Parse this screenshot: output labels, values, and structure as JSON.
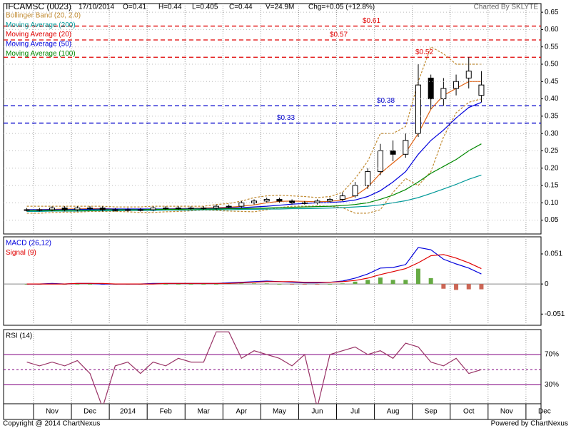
{
  "header": {
    "symbol": "IFCAMSC (0023)",
    "date": "17/10/2014",
    "open": "O=0.41",
    "high": "H=0.44",
    "low": "L=0.405",
    "close": "C=0.44",
    "volume": "V=24.9M",
    "change": "Chg=+0.05 (+12.8%)",
    "credit": "Charted By SKLYTE"
  },
  "footer": {
    "copyright": "Copyright @ 2014 ChartNexus",
    "powered": "Powered by ChartNexus"
  },
  "chart_data": [
    {
      "type": "candlestick",
      "categories": [
        null,
        null,
        "Nov",
        null,
        null,
        "Dec",
        null,
        null,
        "2014",
        null,
        null,
        "Feb",
        null,
        null,
        "Mar",
        null,
        null,
        "Apr",
        null,
        null,
        "May",
        null,
        null,
        "Jun",
        null,
        null,
        "Jul",
        null,
        null,
        "Aug",
        null,
        null,
        "Sep",
        null,
        null,
        "Oct",
        null,
        null,
        "Nov",
        null,
        null,
        "Dec"
      ],
      "open": [
        0.08,
        0.08,
        0.08,
        0.085,
        0.08,
        0.085,
        0.085,
        0.08,
        0.08,
        0.08,
        0.08,
        0.085,
        0.085,
        0.085,
        0.085,
        0.085,
        0.09,
        0.09,
        0.1,
        0.105,
        0.11,
        0.105,
        0.1,
        0.1,
        0.105,
        0.11,
        0.12,
        0.15,
        0.19,
        0.25,
        0.24,
        0.3,
        0.46,
        0.4,
        0.43,
        0.46,
        0.41,
        null,
        null,
        null,
        null,
        null
      ],
      "high": [
        0.085,
        0.085,
        0.09,
        0.09,
        0.09,
        0.09,
        0.09,
        0.085,
        0.085,
        0.085,
        0.09,
        0.09,
        0.09,
        0.09,
        0.09,
        0.095,
        0.095,
        0.105,
        0.11,
        0.115,
        0.115,
        0.11,
        0.105,
        0.11,
        0.115,
        0.13,
        0.16,
        0.2,
        0.27,
        0.28,
        0.3,
        0.5,
        0.47,
        0.46,
        0.47,
        0.52,
        0.48,
        null,
        null,
        null,
        null,
        null
      ],
      "low": [
        0.075,
        0.075,
        0.075,
        0.075,
        0.075,
        0.08,
        0.075,
        0.075,
        0.075,
        0.075,
        0.075,
        0.08,
        0.08,
        0.08,
        0.08,
        0.08,
        0.085,
        0.085,
        0.095,
        0.1,
        0.1,
        0.095,
        0.095,
        0.095,
        0.1,
        0.105,
        0.115,
        0.14,
        0.18,
        0.22,
        0.23,
        0.29,
        0.37,
        0.38,
        0.41,
        0.43,
        0.39,
        null,
        null,
        null,
        null,
        null
      ],
      "close": [
        0.08,
        0.08,
        0.085,
        0.08,
        0.085,
        0.085,
        0.08,
        0.08,
        0.08,
        0.08,
        0.085,
        0.085,
        0.085,
        0.085,
        0.085,
        0.09,
        0.09,
        0.1,
        0.105,
        0.11,
        0.105,
        0.1,
        0.1,
        0.105,
        0.11,
        0.12,
        0.15,
        0.19,
        0.25,
        0.24,
        0.28,
        0.44,
        0.4,
        0.43,
        0.45,
        0.48,
        0.44,
        null,
        null,
        null,
        null,
        null
      ],
      "candle_color": "#000000",
      "series": [
        {
          "name": "Bollinger Band (20, 2.0)",
          "color": "#c08a30",
          "dashed": true,
          "values": [
            0.09,
            0.09,
            0.09,
            0.09,
            0.09,
            0.09,
            0.09,
            0.088,
            0.088,
            0.088,
            0.09,
            0.09,
            0.09,
            0.09,
            0.09,
            0.095,
            0.098,
            0.105,
            0.115,
            0.12,
            0.122,
            0.12,
            0.118,
            0.115,
            0.118,
            0.13,
            0.17,
            0.22,
            0.3,
            0.3,
            0.32,
            0.45,
            0.55,
            0.53,
            0.5,
            0.5,
            0.5,
            null,
            null,
            null,
            null,
            null
          ],
          "lower": [
            0.07,
            0.07,
            0.072,
            0.073,
            0.073,
            0.075,
            0.075,
            0.075,
            0.074,
            0.072,
            0.072,
            0.074,
            0.075,
            0.077,
            0.079,
            0.078,
            0.076,
            0.075,
            0.074,
            0.08,
            0.086,
            0.09,
            0.09,
            0.091,
            0.09,
            0.086,
            0.07,
            0.07,
            0.08,
            0.13,
            0.17,
            0.15,
            0.19,
            0.29,
            0.36,
            0.39,
            0.4,
            null,
            null,
            null,
            null,
            null
          ]
        },
        {
          "name": "Moving Average (200)",
          "color": "#009999",
          "values": [
            0.075,
            0.075,
            0.076,
            0.076,
            0.076,
            0.077,
            0.077,
            0.077,
            0.078,
            0.078,
            0.078,
            0.079,
            0.079,
            0.079,
            0.08,
            0.08,
            0.08,
            0.081,
            0.081,
            0.082,
            0.082,
            0.083,
            0.083,
            0.084,
            0.085,
            0.086,
            0.088,
            0.09,
            0.094,
            0.1,
            0.106,
            0.115,
            0.127,
            0.14,
            0.153,
            0.168,
            0.18,
            null,
            null,
            null,
            null,
            null
          ]
        },
        {
          "name": "Moving Average (20)",
          "color": "#e06010",
          "values": [
            0.08,
            0.08,
            0.081,
            0.082,
            0.082,
            0.083,
            0.083,
            0.082,
            0.081,
            0.08,
            0.081,
            0.082,
            0.083,
            0.084,
            0.085,
            0.086,
            0.087,
            0.09,
            0.094,
            0.1,
            0.104,
            0.105,
            0.104,
            0.103,
            0.104,
            0.108,
            0.12,
            0.145,
            0.185,
            0.215,
            0.245,
            0.3,
            0.37,
            0.41,
            0.43,
            0.45,
            0.45,
            null,
            null,
            null,
            null,
            null
          ]
        },
        {
          "name": "Moving Average (50)",
          "color": "#0000dd",
          "values": [
            0.08,
            0.08,
            0.08,
            0.08,
            0.081,
            0.081,
            0.082,
            0.082,
            0.082,
            0.082,
            0.082,
            0.082,
            0.082,
            0.083,
            0.083,
            0.084,
            0.085,
            0.086,
            0.088,
            0.09,
            0.093,
            0.096,
            0.098,
            0.1,
            0.101,
            0.103,
            0.108,
            0.118,
            0.135,
            0.16,
            0.19,
            0.24,
            0.28,
            0.31,
            0.345,
            0.375,
            0.39,
            null,
            null,
            null,
            null,
            null
          ]
        },
        {
          "name": "Moving Average (100)",
          "color": "#008800",
          "values": [
            0.078,
            0.078,
            0.078,
            0.079,
            0.079,
            0.079,
            0.08,
            0.08,
            0.08,
            0.08,
            0.081,
            0.081,
            0.081,
            0.082,
            0.082,
            0.082,
            0.083,
            0.083,
            0.084,
            0.085,
            0.086,
            0.087,
            0.088,
            0.089,
            0.09,
            0.092,
            0.095,
            0.1,
            0.11,
            0.122,
            0.138,
            0.16,
            0.185,
            0.205,
            0.225,
            0.25,
            0.27,
            null,
            null,
            null,
            null,
            null
          ]
        }
      ],
      "legend_colors": [
        "#c08a30",
        "#009999",
        "#e00000",
        "#0000dd",
        "#008800"
      ],
      "reference_lines": [
        {
          "value": 0.61,
          "label": "$0.61",
          "color": "#e00000"
        },
        {
          "value": 0.57,
          "label": "$0.57",
          "color": "#e00000"
        },
        {
          "value": 0.52,
          "label": "$0.52",
          "color": "#e00000"
        },
        {
          "value": 0.38,
          "label": "$0.38",
          "color": "#0000cc"
        },
        {
          "value": 0.33,
          "label": "$0.33",
          "color": "#0000cc"
        }
      ],
      "ylim": [
        0.01,
        0.675
      ],
      "yticks": [
        0.05,
        {
          "value": 0.1,
          "label": "0.10"
        },
        0.15,
        {
          "value": 0.2,
          "label": "0.20"
        },
        0.25,
        {
          "value": 0.3,
          "label": "0.30"
        },
        0.35,
        {
          "value": 0.4,
          "label": "0.40"
        },
        0.45,
        {
          "value": 0.5,
          "label": "0.50"
        },
        0.55,
        {
          "value": 0.6,
          "label": "0.60"
        },
        0.65
      ],
      "grid": true
    },
    {
      "type": "macd",
      "series": [
        {
          "name": "MACD (26,12)",
          "color": "#0000dd",
          "values": [
            0,
            0,
            0.001,
            0,
            0.001,
            0.001,
            0,
            0,
            0,
            0,
            0.001,
            0.001,
            0.001,
            0.001,
            0.001,
            0.001,
            0.002,
            0.003,
            0.004,
            0.005,
            0.004,
            0.003,
            0.002,
            0.002,
            0.003,
            0.005,
            0.01,
            0.017,
            0.027,
            0.028,
            0.033,
            0.062,
            0.058,
            0.042,
            0.034,
            0.027,
            0.017,
            null,
            null,
            null,
            null,
            null
          ]
        },
        {
          "name": "Signal (9)",
          "color": "#e00000",
          "values": [
            0,
            0,
            0,
            0,
            0.001,
            0.001,
            0.001,
            0,
            0,
            0,
            0,
            0.001,
            0.001,
            0.001,
            0.001,
            0.001,
            0.001,
            0.002,
            0.003,
            0.004,
            0.004,
            0.004,
            0.003,
            0.003,
            0.003,
            0.004,
            0.006,
            0.01,
            0.016,
            0.021,
            0.026,
            0.036,
            0.048,
            0.05,
            0.044,
            0.036,
            0.026,
            null,
            null,
            null,
            null,
            null
          ]
        }
      ],
      "histogram": {
        "positive_color": "#66aa44",
        "negative_color": "#cc6655",
        "values": [
          0,
          0,
          0.001,
          0,
          0,
          0,
          -0.001,
          0,
          0,
          0,
          0.001,
          0,
          0,
          0,
          0,
          0,
          0.001,
          0.001,
          0.001,
          0.001,
          0,
          -0.001,
          -0.001,
          -0.001,
          0,
          0.001,
          0.004,
          0.007,
          0.011,
          0.007,
          0.007,
          0.026,
          0.01,
          -0.008,
          -0.01,
          -0.009,
          -0.009,
          null,
          null,
          null,
          null,
          null
        ]
      },
      "ylim": [
        -0.07,
        0.08
      ],
      "yticks": [
        0.051,
        0,
        -0.051
      ]
    },
    {
      "type": "line",
      "series": [
        {
          "name": "RSI (14)",
          "color": "#993366",
          "values": [
            60,
            55,
            60,
            55,
            62,
            45,
            0,
            55,
            60,
            45,
            60,
            55,
            65,
            60,
            60,
            100,
            100,
            65,
            75,
            70,
            65,
            55,
            70,
            0,
            70,
            75,
            80,
            70,
            75,
            65,
            85,
            80,
            60,
            55,
            65,
            45,
            50,
            null,
            null,
            null,
            null,
            null
          ]
        }
      ],
      "bands_color": "#800080",
      "midline": 50,
      "ylim": [
        5,
        103
      ],
      "yticks": [
        {
          "value": 70,
          "label": "70%"
        },
        {
          "value": 30,
          "label": "30%"
        }
      ]
    }
  ]
}
